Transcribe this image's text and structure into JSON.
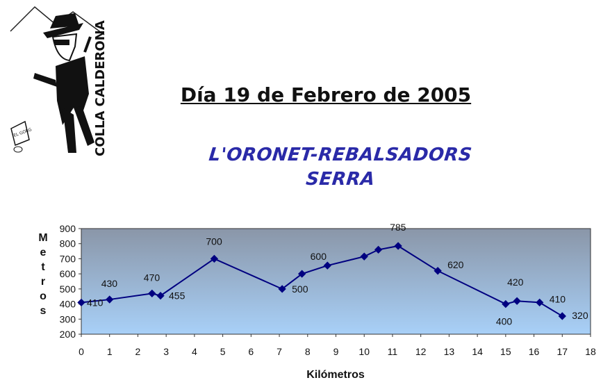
{
  "header": {
    "title": "Día 19 de Febrero de 2005",
    "route_line_1": "L'ORONET-REBALSADORS",
    "route_line_2": "SERRA"
  },
  "logo": {
    "vertical_text": "COLLA CALDERONA",
    "sign_text": "EL GORG"
  },
  "colors": {
    "series": "#000080",
    "plot_bg_top": "#8a96a8",
    "plot_bg_bottom": "#a8d0f8",
    "route_text": "#2a2aa8"
  },
  "chart_data": {
    "type": "line",
    "xlabel": "Kilómetros",
    "ylabel": "Metros",
    "xlim": [
      0,
      18
    ],
    "ylim": [
      200,
      900
    ],
    "xticks": [
      0,
      1,
      2,
      3,
      4,
      5,
      6,
      7,
      8,
      9,
      10,
      11,
      12,
      13,
      14,
      15,
      16,
      17,
      18
    ],
    "yticks": [
      200,
      300,
      400,
      500,
      600,
      700,
      800,
      900
    ],
    "grid": false,
    "series": [
      {
        "x": [
          0,
          1,
          2.5,
          2.8,
          4.7,
          7.1,
          7.8,
          8.7,
          10,
          10.5,
          11.2,
          12.6,
          15,
          15.4,
          16.2,
          17
        ],
        "y": [
          410,
          430,
          470,
          455,
          700,
          500,
          600,
          655,
          715,
          760,
          785,
          620,
          400,
          420,
          410,
          320
        ],
        "labels": [
          "410",
          "430",
          "470",
          "455",
          "700",
          "500",
          "600",
          null,
          null,
          null,
          "785",
          "620",
          "400",
          "420",
          "410",
          "320"
        ]
      }
    ]
  }
}
